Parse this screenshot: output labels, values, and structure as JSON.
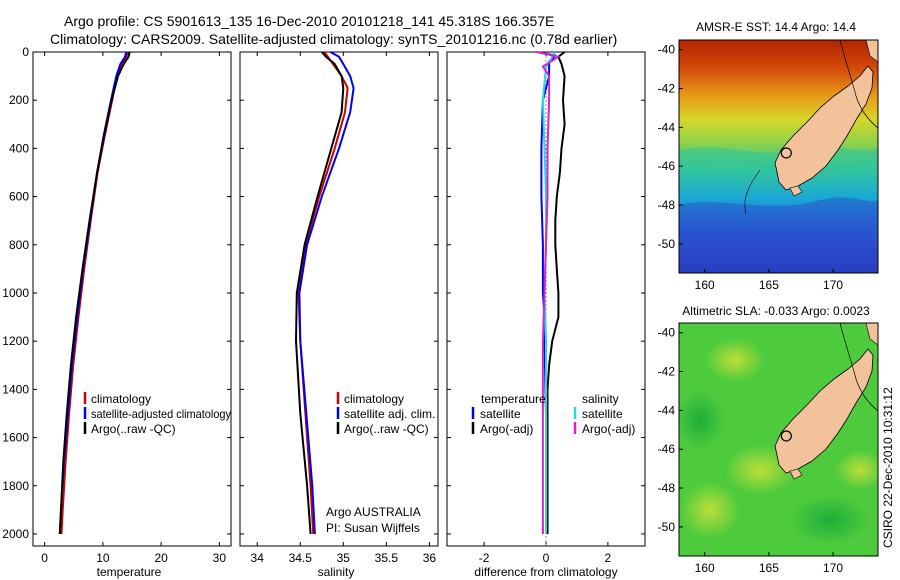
{
  "header": {
    "line1": "Argo profile: CS 5901613_135 16-Dec-2010 20101218_141 45.318S 166.357E",
    "line2": "Climatology: CARS2009. Satellite-adjusted climatology: synTS_20101216.nc (0.78d earlier)"
  },
  "credit": {
    "org": "Argo AUSTRALIA",
    "pi": "PI: Susan Wijffels",
    "stamp": "CSIRO 22-Dec-2010 10:31:12"
  },
  "colors": {
    "climatology": "#cc0000",
    "satellite": "#0000ee",
    "argo": "#000000",
    "salinity_satellite": "#22dddd",
    "salinity_argo": "#dd22cc",
    "land": "#f2c29b"
  },
  "chart_data": [
    {
      "type": "line",
      "id": "temperature",
      "xlabel": "temperature",
      "xlim": [
        -2,
        32
      ],
      "ylim": [
        2050,
        0
      ],
      "xticks": [
        0,
        10,
        20,
        30
      ],
      "yticks": [
        0,
        200,
        400,
        600,
        800,
        1000,
        1200,
        1400,
        1600,
        1800,
        2000
      ],
      "legend": [
        "climatology",
        "satellite-adjusted climatology",
        "Argo(..raw -QC)"
      ],
      "series": [
        {
          "name": "climatology",
          "key": "climatology",
          "points": [
            [
              14.3,
              0
            ],
            [
              14.0,
              20
            ],
            [
              13.2,
              50
            ],
            [
              12.4,
              100
            ],
            [
              11.6,
              200
            ],
            [
              10.3,
              350
            ],
            [
              9.1,
              500
            ],
            [
              7.9,
              700
            ],
            [
              6.8,
              900
            ],
            [
              5.8,
              1100
            ],
            [
              4.9,
              1300
            ],
            [
              4.2,
              1500
            ],
            [
              3.6,
              1700
            ],
            [
              3.1,
              1900
            ],
            [
              2.9,
              2000
            ]
          ]
        },
        {
          "name": "satellite-adjusted climatology",
          "key": "satellite",
          "points": [
            [
              14.0,
              0
            ],
            [
              13.8,
              20
            ],
            [
              13.0,
              50
            ],
            [
              12.3,
              100
            ],
            [
              11.4,
              200
            ],
            [
              10.1,
              350
            ],
            [
              9.0,
              500
            ],
            [
              7.8,
              700
            ],
            [
              6.6,
              900
            ],
            [
              5.6,
              1100
            ],
            [
              4.7,
              1300
            ],
            [
              4.0,
              1500
            ],
            [
              3.3,
              1700
            ],
            [
              2.8,
              1900
            ],
            [
              2.6,
              2000
            ]
          ]
        },
        {
          "name": "Argo(..raw -QC)",
          "key": "argo",
          "points": [
            [
              14.6,
              0
            ],
            [
              14.4,
              20
            ],
            [
              13.6,
              50
            ],
            [
              12.6,
              100
            ],
            [
              11.5,
              200
            ],
            [
              10.2,
              350
            ],
            [
              9.0,
              500
            ],
            [
              7.7,
              700
            ],
            [
              6.5,
              900
            ],
            [
              5.4,
              1100
            ],
            [
              4.5,
              1300
            ],
            [
              3.8,
              1500
            ],
            [
              3.2,
              1700
            ],
            [
              2.8,
              1900
            ],
            [
              2.6,
              2000
            ]
          ]
        }
      ]
    },
    {
      "type": "line",
      "id": "salinity",
      "xlabel": "salinity",
      "xlim": [
        33.8,
        36.1
      ],
      "ylim": [
        2050,
        0
      ],
      "xticks": [
        34,
        34.5,
        35,
        35.5,
        36
      ],
      "legend": [
        "climatology",
        "satellite adj. clim.",
        "Argo(..raw -QC)"
      ],
      "series": [
        {
          "name": "climatology",
          "key": "climatology",
          "points": [
            [
              34.78,
              0
            ],
            [
              34.82,
              20
            ],
            [
              34.88,
              50
            ],
            [
              34.98,
              100
            ],
            [
              35.05,
              150
            ],
            [
              35.02,
              250
            ],
            [
              34.9,
              400
            ],
            [
              34.72,
              600
            ],
            [
              34.56,
              800
            ],
            [
              34.48,
              1000
            ],
            [
              34.5,
              1200
            ],
            [
              34.56,
              1500
            ],
            [
              34.62,
              1800
            ],
            [
              34.65,
              2000
            ]
          ]
        },
        {
          "name": "satellite adj. clim.",
          "key": "satellite",
          "points": [
            [
              34.85,
              0
            ],
            [
              34.95,
              20
            ],
            [
              35.0,
              50
            ],
            [
              35.08,
              100
            ],
            [
              35.12,
              150
            ],
            [
              35.08,
              250
            ],
            [
              34.95,
              400
            ],
            [
              34.75,
              600
            ],
            [
              34.58,
              800
            ],
            [
              34.49,
              1000
            ],
            [
              34.5,
              1200
            ],
            [
              34.57,
              1500
            ],
            [
              34.64,
              1800
            ],
            [
              34.67,
              2000
            ]
          ]
        },
        {
          "name": "Argo(..raw -QC)",
          "key": "argo",
          "points": [
            [
              34.75,
              0
            ],
            [
              34.8,
              20
            ],
            [
              34.9,
              50
            ],
            [
              34.98,
              100
            ],
            [
              35.0,
              150
            ],
            [
              34.98,
              250
            ],
            [
              34.86,
              400
            ],
            [
              34.7,
              600
            ],
            [
              34.55,
              800
            ],
            [
              34.46,
              1000
            ],
            [
              34.45,
              1200
            ],
            [
              34.5,
              1500
            ],
            [
              34.58,
              1800
            ],
            [
              34.62,
              2000
            ]
          ]
        }
      ]
    },
    {
      "type": "line",
      "id": "difference",
      "xlabel": "difference from climatology",
      "xlim": [
        -3.2,
        3.2
      ],
      "ylim": [
        2050,
        0
      ],
      "xticks": [
        -2,
        0,
        2
      ],
      "legend_titles": [
        "temperature",
        "salinity"
      ],
      "legend": [
        "satellite",
        "Argo(-adj)",
        "satellite",
        "Argo(-adj)"
      ],
      "series": [
        {
          "name": "satellite",
          "group": "temperature",
          "key": "satellite",
          "points": [
            [
              -0.3,
              0
            ],
            [
              0.3,
              15
            ],
            [
              0.1,
              40
            ],
            [
              0.1,
              100
            ],
            [
              -0.1,
              200
            ],
            [
              -0.15,
              400
            ],
            [
              -0.15,
              600
            ],
            [
              -0.1,
              800
            ],
            [
              -0.1,
              1000
            ],
            [
              -0.05,
              1100
            ],
            [
              -0.05,
              1200
            ],
            [
              0.0,
              1500
            ],
            [
              0.0,
              2000
            ]
          ]
        },
        {
          "name": "Argo(-adj)",
          "group": "temperature",
          "key": "argo",
          "points": [
            [
              0.6,
              0
            ],
            [
              0.4,
              20
            ],
            [
              0.5,
              50
            ],
            [
              0.6,
              100
            ],
            [
              0.55,
              200
            ],
            [
              0.6,
              300
            ],
            [
              0.5,
              400
            ],
            [
              0.45,
              500
            ],
            [
              0.35,
              600
            ],
            [
              0.3,
              700
            ],
            [
              0.3,
              800
            ],
            [
              0.35,
              900
            ],
            [
              0.4,
              1000
            ],
            [
              0.4,
              1100
            ],
            [
              0.2,
              1200
            ],
            [
              0.1,
              1300
            ],
            [
              0.05,
              1400
            ],
            [
              0.05,
              2000
            ]
          ]
        },
        {
          "name": "satellite",
          "group": "salinity",
          "key": "salinity_satellite",
          "points": [
            [
              0.3,
              0
            ],
            [
              0.2,
              20
            ],
            [
              0.0,
              60
            ],
            [
              -0.1,
              200
            ],
            [
              -0.05,
              400
            ],
            [
              0.0,
              600
            ],
            [
              0.0,
              800
            ],
            [
              -0.05,
              1000
            ],
            [
              0.0,
              1200
            ],
            [
              0.0,
              1500
            ],
            [
              0.0,
              2000
            ]
          ]
        },
        {
          "name": "Argo(-adj)",
          "group": "salinity",
          "key": "salinity_argo",
          "points": [
            [
              -0.3,
              0
            ],
            [
              0.4,
              20
            ],
            [
              -0.1,
              60
            ],
            [
              0.1,
              100
            ],
            [
              0.1,
              200
            ],
            [
              0.05,
              400
            ],
            [
              0.05,
              600
            ],
            [
              0.0,
              800
            ],
            [
              -0.05,
              1000
            ],
            [
              -0.1,
              1200
            ],
            [
              -0.1,
              1500
            ],
            [
              -0.1,
              1800
            ],
            [
              -0.1,
              2000
            ]
          ]
        }
      ]
    },
    {
      "type": "heatmap",
      "id": "sst-map",
      "title": "AMSR-E SST: 14.4 Argo: 14.4",
      "xlim": [
        158,
        173.5
      ],
      "ylim": [
        -51.5,
        -39.5
      ],
      "xticks": [
        160,
        165,
        170
      ],
      "yticks": [
        -40,
        -42,
        -44,
        -46,
        -48,
        -50
      ],
      "argo_position": [
        166.357,
        -45.318
      ]
    },
    {
      "type": "heatmap",
      "id": "sla-map",
      "title": "Altimetric SLA: -0.033 Argo: 0.0023",
      "xlim": [
        158,
        173.5
      ],
      "ylim": [
        -51.5,
        -39.5
      ],
      "xticks": [
        160,
        165,
        170
      ],
      "yticks": [
        -40,
        -42,
        -44,
        -46,
        -48,
        -50
      ],
      "argo_position": [
        166.357,
        -45.318
      ]
    }
  ]
}
